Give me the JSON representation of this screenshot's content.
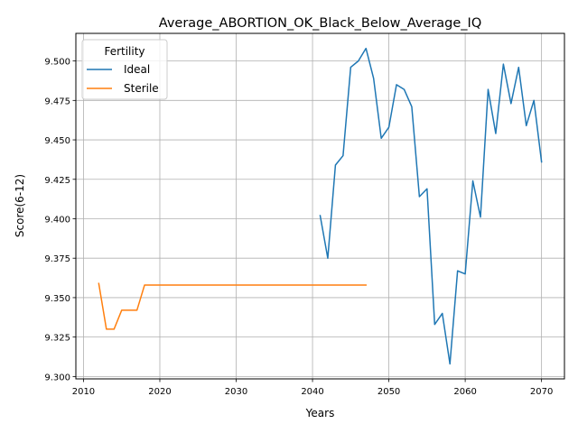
{
  "chart_data": {
    "type": "line",
    "title": "Average_ABORTION_OK_Black_Below_Average_IQ",
    "xlabel": "Years",
    "ylabel": "Score(6-12)",
    "xlim": [
      2009,
      2073
    ],
    "ylim": [
      9.2985,
      9.5175
    ],
    "xticks": [
      2010,
      2020,
      2030,
      2040,
      2050,
      2060,
      2070
    ],
    "yticks": [
      9.3,
      9.325,
      9.35,
      9.375,
      9.4,
      9.425,
      9.45,
      9.475,
      9.5
    ],
    "ytick_labels": [
      "9.300",
      "9.325",
      "9.350",
      "9.375",
      "9.400",
      "9.425",
      "9.450",
      "9.475",
      "9.500"
    ],
    "grid": true,
    "legend": {
      "title": "Fertility",
      "placement": "upper-left"
    },
    "series": [
      {
        "name": "Ideal",
        "color": "#1f77b4",
        "x": [
          2041,
          2042,
          2043,
          2044,
          2045,
          2046,
          2047,
          2048,
          2049,
          2050,
          2051,
          2052,
          2053,
          2054,
          2055,
          2056,
          2057,
          2058,
          2059,
          2060,
          2061,
          2062,
          2063,
          2064,
          2065,
          2066,
          2067,
          2068,
          2069,
          2070
        ],
        "values": [
          9.402,
          9.375,
          9.434,
          9.44,
          9.496,
          9.5,
          9.508,
          9.489,
          9.451,
          9.458,
          9.485,
          9.482,
          9.471,
          9.414,
          9.419,
          9.333,
          9.34,
          9.308,
          9.367,
          9.365,
          9.424,
          9.401,
          9.482,
          9.454,
          9.498,
          9.473,
          9.496,
          9.459,
          9.475,
          9.436
        ]
      },
      {
        "name": "Sterile",
        "color": "#ff7f0e",
        "x": [
          2012,
          2013,
          2014,
          2015,
          2016,
          2017,
          2018,
          2019,
          2020,
          2021,
          2022,
          2023,
          2024,
          2025,
          2026,
          2027,
          2028,
          2029,
          2030,
          2031,
          2032,
          2033,
          2034,
          2035,
          2036,
          2037,
          2038,
          2039,
          2040,
          2041,
          2042,
          2043,
          2044,
          2045,
          2046,
          2047
        ],
        "values": [
          9.359,
          9.33,
          9.33,
          9.342,
          9.342,
          9.342,
          9.358,
          9.358,
          9.358,
          9.358,
          9.358,
          9.358,
          9.358,
          9.358,
          9.358,
          9.358,
          9.358,
          9.358,
          9.358,
          9.358,
          9.358,
          9.358,
          9.358,
          9.358,
          9.358,
          9.358,
          9.358,
          9.358,
          9.358,
          9.358,
          9.358,
          9.358,
          9.358,
          9.358,
          9.358,
          9.358
        ]
      }
    ]
  }
}
